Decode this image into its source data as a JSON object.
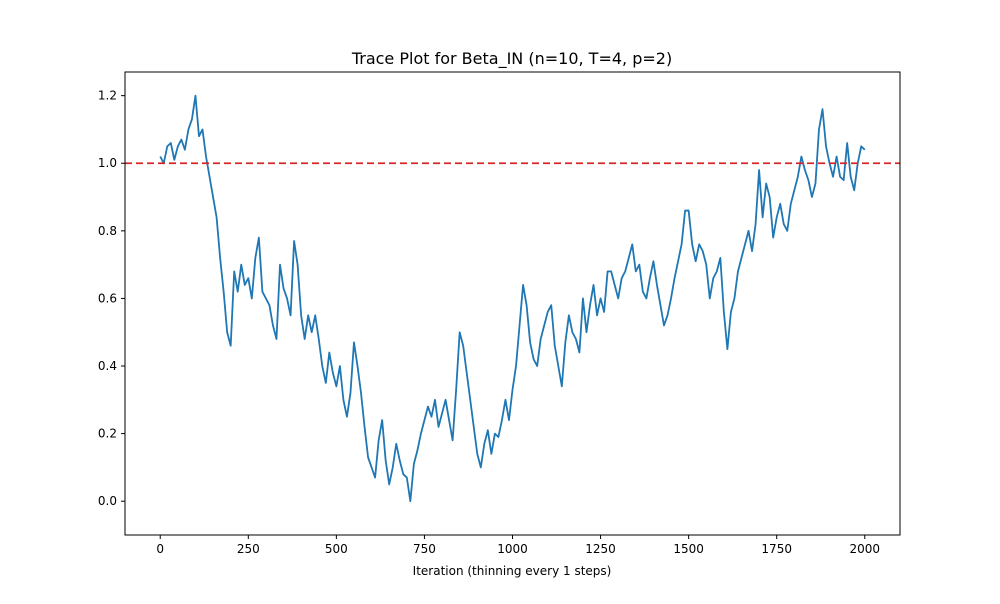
{
  "chart_data": {
    "type": "line",
    "title": "Trace Plot for Beta_IN (n=10, T=4, p=2)",
    "xlabel": "Iteration (thinning every 1 steps)",
    "ylabel": "",
    "xlim": [
      -100,
      2100
    ],
    "ylim": [
      -0.1,
      1.27
    ],
    "xticks": [
      0,
      250,
      500,
      750,
      1000,
      1250,
      1500,
      1750,
      2000
    ],
    "xtick_labels": [
      "0",
      "250",
      "500",
      "750",
      "1000",
      "1250",
      "1500",
      "1750",
      "2000"
    ],
    "yticks": [
      0.0,
      0.2,
      0.4,
      0.6,
      0.8,
      1.0,
      1.2
    ],
    "ytick_labels": [
      "0.0",
      "0.2",
      "0.4",
      "0.6",
      "0.8",
      "1.0",
      "1.2"
    ],
    "grid": false,
    "legend": false,
    "reference_line": {
      "y": 1.0,
      "style": "dashed",
      "color": "#d62728"
    },
    "series": [
      {
        "color": "#1f77b4",
        "x": [
          0,
          10,
          20,
          30,
          40,
          50,
          60,
          70,
          80,
          90,
          100,
          110,
          120,
          130,
          140,
          150,
          160,
          170,
          180,
          190,
          200,
          210,
          220,
          230,
          240,
          250,
          260,
          270,
          280,
          290,
          300,
          310,
          320,
          330,
          340,
          350,
          360,
          370,
          380,
          390,
          400,
          410,
          420,
          430,
          440,
          450,
          460,
          470,
          480,
          490,
          500,
          510,
          520,
          530,
          540,
          550,
          560,
          570,
          580,
          590,
          600,
          610,
          620,
          630,
          640,
          650,
          660,
          670,
          680,
          690,
          700,
          710,
          720,
          730,
          740,
          750,
          760,
          770,
          780,
          790,
          800,
          810,
          820,
          830,
          840,
          850,
          860,
          870,
          880,
          890,
          900,
          910,
          920,
          930,
          940,
          950,
          960,
          970,
          980,
          990,
          1000,
          1010,
          1020,
          1030,
          1040,
          1050,
          1060,
          1070,
          1080,
          1090,
          1100,
          1110,
          1120,
          1130,
          1140,
          1150,
          1160,
          1170,
          1180,
          1190,
          1200,
          1210,
          1220,
          1230,
          1240,
          1250,
          1260,
          1270,
          1280,
          1290,
          1300,
          1310,
          1320,
          1330,
          1340,
          1350,
          1360,
          1370,
          1380,
          1390,
          1400,
          1410,
          1420,
          1430,
          1440,
          1450,
          1460,
          1470,
          1480,
          1490,
          1500,
          1510,
          1520,
          1530,
          1540,
          1550,
          1560,
          1570,
          1580,
          1590,
          1600,
          1610,
          1620,
          1630,
          1640,
          1650,
          1660,
          1670,
          1680,
          1690,
          1700,
          1710,
          1720,
          1730,
          1740,
          1750,
          1760,
          1770,
          1780,
          1790,
          1800,
          1810,
          1820,
          1830,
          1840,
          1850,
          1860,
          1870,
          1880,
          1890,
          1900,
          1910,
          1920,
          1930,
          1940,
          1950,
          1960,
          1970,
          1980,
          1990,
          2000
        ],
        "values": [
          1.02,
          1.0,
          1.05,
          1.06,
          1.01,
          1.05,
          1.07,
          1.04,
          1.1,
          1.13,
          1.2,
          1.08,
          1.1,
          1.02,
          0.96,
          0.9,
          0.84,
          0.72,
          0.62,
          0.5,
          0.46,
          0.68,
          0.62,
          0.7,
          0.64,
          0.66,
          0.6,
          0.72,
          0.78,
          0.62,
          0.6,
          0.58,
          0.52,
          0.48,
          0.7,
          0.63,
          0.6,
          0.55,
          0.77,
          0.7,
          0.55,
          0.48,
          0.55,
          0.5,
          0.55,
          0.48,
          0.4,
          0.35,
          0.44,
          0.38,
          0.34,
          0.4,
          0.3,
          0.25,
          0.32,
          0.47,
          0.4,
          0.32,
          0.22,
          0.13,
          0.1,
          0.07,
          0.18,
          0.24,
          0.12,
          0.05,
          0.1,
          0.17,
          0.12,
          0.08,
          0.07,
          0.0,
          0.11,
          0.15,
          0.2,
          0.24,
          0.28,
          0.25,
          0.3,
          0.22,
          0.26,
          0.3,
          0.24,
          0.18,
          0.33,
          0.5,
          0.46,
          0.38,
          0.3,
          0.22,
          0.14,
          0.1,
          0.17,
          0.21,
          0.14,
          0.2,
          0.19,
          0.24,
          0.3,
          0.24,
          0.33,
          0.4,
          0.52,
          0.64,
          0.58,
          0.47,
          0.42,
          0.4,
          0.48,
          0.52,
          0.56,
          0.58,
          0.46,
          0.4,
          0.34,
          0.47,
          0.55,
          0.5,
          0.48,
          0.44,
          0.6,
          0.5,
          0.58,
          0.64,
          0.55,
          0.6,
          0.56,
          0.68,
          0.68,
          0.64,
          0.6,
          0.66,
          0.68,
          0.72,
          0.76,
          0.68,
          0.7,
          0.62,
          0.6,
          0.66,
          0.71,
          0.64,
          0.58,
          0.52,
          0.55,
          0.6,
          0.66,
          0.71,
          0.76,
          0.86,
          0.86,
          0.76,
          0.71,
          0.76,
          0.74,
          0.7,
          0.6,
          0.66,
          0.68,
          0.72,
          0.56,
          0.45,
          0.56,
          0.6,
          0.68,
          0.72,
          0.76,
          0.8,
          0.74,
          0.82,
          0.98,
          0.84,
          0.94,
          0.9,
          0.78,
          0.84,
          0.88,
          0.82,
          0.8,
          0.88,
          0.92,
          0.96,
          1.02,
          0.98,
          0.95,
          0.9,
          0.94,
          1.1,
          1.16,
          1.05,
          1.0,
          0.96,
          1.02,
          0.96,
          0.95,
          1.06,
          0.96,
          0.92,
          1.0,
          1.05,
          1.04
        ]
      }
    ]
  }
}
